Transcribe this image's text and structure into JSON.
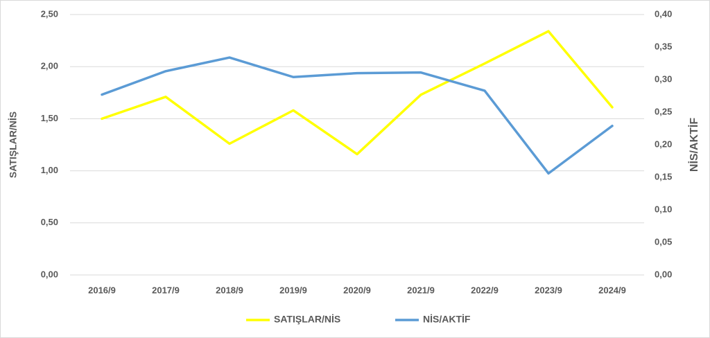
{
  "chart_data": {
    "type": "line",
    "categories": [
      "2016/9",
      "2017/9",
      "2018/9",
      "2019/9",
      "2020/9",
      "2021/9",
      "2022/9",
      "2023/9",
      "2024/9"
    ],
    "y_label": "SATIŞLAR/NİS",
    "y2_label": "NİS/AKTİF",
    "series": [
      {
        "name": "SATIŞLAR/NİS",
        "color": "#ffff00",
        "values": [
          1.5,
          1.71,
          1.26,
          1.58,
          1.16,
          1.73,
          2.03,
          2.34,
          1.61
        ]
      },
      {
        "name": "NİS/AKTİF",
        "color": "#5b9bd5",
        "axis": "y2",
        "values": [
          0.277,
          0.313,
          0.334,
          0.304,
          0.31,
          0.311,
          0.283,
          0.156,
          0.229
        ]
      }
    ],
    "ylim": [
      0,
      2.5
    ],
    "yticks": [
      {
        "value": 0,
        "label": "0,00"
      },
      {
        "value": 0.5,
        "label": "0,50"
      },
      {
        "value": 1,
        "label": "1,00"
      },
      {
        "value": 1.5,
        "label": "1,50"
      },
      {
        "value": 2,
        "label": "2,00"
      },
      {
        "value": 2.5,
        "label": "2,50"
      }
    ],
    "y2lim": [
      0,
      0.4
    ],
    "y2ticks": [
      {
        "value": 0,
        "label": "0,00"
      },
      {
        "value": 0.05,
        "label": "0,05"
      },
      {
        "value": 0.1,
        "label": "0,10"
      },
      {
        "value": 0.15,
        "label": "0,15"
      },
      {
        "value": 0.2,
        "label": "0,20"
      },
      {
        "value": 0.25,
        "label": "0,25"
      },
      {
        "value": 0.3,
        "label": "0,30"
      },
      {
        "value": 0.35,
        "label": "0,35"
      },
      {
        "value": 0.4,
        "label": "0,40"
      }
    ],
    "grid": true,
    "legend": "bottom"
  }
}
